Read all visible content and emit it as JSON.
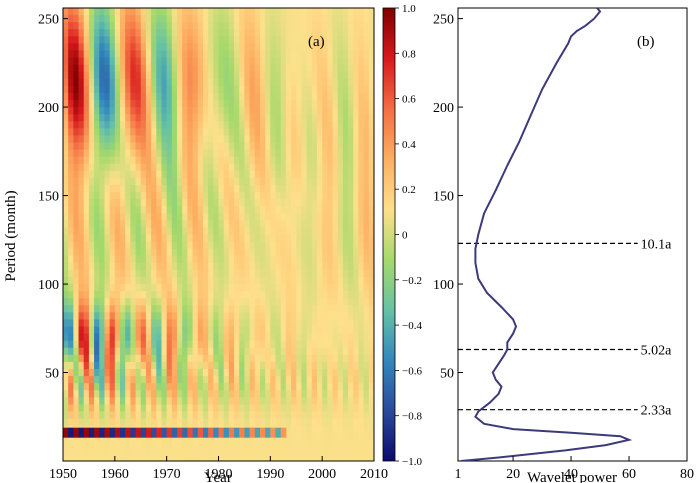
{
  "figure": {
    "panel_a_label": "(a)",
    "panel_b_label": "(b)"
  },
  "chart_data": [
    {
      "type": "heatmap",
      "panel": "(a)",
      "xlabel": "Year",
      "ylabel": "Period (month)",
      "xlim": [
        1950,
        2010
      ],
      "ylim": [
        0,
        256
      ],
      "x_ticks": [
        1950,
        1960,
        1970,
        1980,
        1990,
        2000,
        2010
      ],
      "y_ticks": [
        50,
        100,
        150,
        200,
        250
      ],
      "colorbar": {
        "range": [
          -1.0,
          1.0
        ],
        "ticks": [
          "1.0",
          "0.8",
          "0.6",
          "0.4",
          "0.2",
          "0",
          "−0.2",
          "−0.4",
          "−0.6",
          "−0.8",
          "−1.0"
        ],
        "colors": [
          "#7f0000",
          "#d7191c",
          "#f46d43",
          "#fdae61",
          "#fee08b",
          "#a6d96a",
          "#66c2a5",
          "#3288bd",
          "#2b4a9c",
          "#0a0a6e"
        ]
      },
      "bands": [
        {
          "period": 16,
          "year_range": [
            1950,
            1993
          ],
          "note": "strong alternating band near 16 months"
        },
        {
          "period": 55,
          "year_range": [
            1950,
            1972
          ]
        },
        {
          "period": 75,
          "year_range": [
            1950,
            1970
          ]
        },
        {
          "period": 220,
          "year_range": [
            1950,
            1975
          ]
        }
      ]
    },
    {
      "type": "line",
      "panel": "(b)",
      "xlabel": "Wavelet power",
      "ylabel": "",
      "xlim": [
        1,
        80
      ],
      "ylim": [
        0,
        256
      ],
      "x_ticks": [
        1,
        20,
        40,
        60,
        80
      ],
      "y_ticks": [
        50,
        100,
        150,
        200,
        250
      ],
      "series": [
        {
          "color": "#3b3a7a",
          "points": [
            [
              2,
              0
            ],
            [
              15,
              2
            ],
            [
              38,
              6
            ],
            [
              52,
              9
            ],
            [
              60,
              12
            ],
            [
              57,
              14
            ],
            [
              40,
              16
            ],
            [
              20,
              18
            ],
            [
              10,
              21
            ],
            [
              7,
              25
            ],
            [
              8,
              28
            ],
            [
              12,
              33
            ],
            [
              15,
              38
            ],
            [
              16,
              42
            ],
            [
              14,
              46
            ],
            [
              13,
              50
            ],
            [
              15,
              55
            ],
            [
              17,
              60
            ],
            [
              18,
              63
            ],
            [
              18,
              67
            ],
            [
              20,
              72
            ],
            [
              21,
              76
            ],
            [
              20,
              80
            ],
            [
              16,
              87
            ],
            [
              11,
              95
            ],
            [
              8,
              103
            ],
            [
              7,
              112
            ],
            [
              7,
              120
            ],
            [
              8,
              128
            ],
            [
              10,
              140
            ],
            [
              14,
              153
            ],
            [
              18,
              167
            ],
            [
              22,
              180
            ],
            [
              26,
              195
            ],
            [
              30,
              210
            ],
            [
              35,
              225
            ],
            [
              39,
              236
            ],
            [
              40,
              240
            ],
            [
              42,
              243
            ],
            [
              45,
              246
            ],
            [
              48,
              250
            ],
            [
              50,
              254
            ],
            [
              49,
              256
            ]
          ]
        }
      ],
      "reference_lines": [
        {
          "period": 123,
          "label": "10.1a"
        },
        {
          "period": 63,
          "label": "5.02a"
        },
        {
          "period": 29,
          "label": "2.33a"
        }
      ]
    }
  ]
}
